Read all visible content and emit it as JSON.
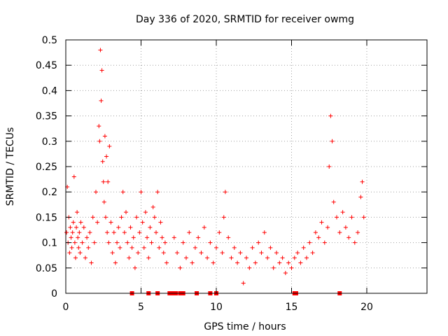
{
  "chart_data": {
    "type": "scatter",
    "title": "Day 336 of 2020, SRMTID for receiver owmg",
    "xlabel": "GPS time / hours",
    "ylabel": "SRMTID / TECUs",
    "xlim": [
      0,
      24
    ],
    "ylim": [
      0,
      0.5
    ],
    "xticks": [
      0,
      5,
      10,
      15,
      20
    ],
    "yticks": [
      0,
      0.05,
      0.1,
      0.15,
      0.2,
      0.25,
      0.3,
      0.35,
      0.4,
      0.45,
      0.5
    ],
    "grid": true,
    "marker": "+",
    "series_color": "#ff0000",
    "series": [
      {
        "name": "SRMTID",
        "x": [
          0.05,
          0.1,
          0.15,
          0.2,
          0.25,
          0.3,
          0.35,
          0.4,
          0.45,
          0.5,
          0.55,
          0.6,
          0.65,
          0.7,
          0.75,
          0.8,
          0.85,
          0.9,
          0.95,
          1.0,
          1.1,
          1.2,
          1.3,
          1.4,
          1.5,
          1.6,
          1.7,
          1.8,
          1.9,
          2.0,
          2.1,
          2.2,
          2.25,
          2.3,
          2.35,
          2.4,
          2.45,
          2.5,
          2.55,
          2.6,
          2.65,
          2.7,
          2.75,
          2.8,
          2.85,
          2.9,
          3.0,
          3.1,
          3.2,
          3.3,
          3.4,
          3.5,
          3.6,
          3.7,
          3.8,
          3.9,
          4.0,
          4.1,
          4.2,
          4.3,
          4.4,
          4.5,
          4.6,
          4.7,
          4.8,
          4.9,
          5.0,
          5.1,
          5.2,
          5.3,
          5.4,
          5.5,
          5.6,
          5.7,
          5.8,
          5.9,
          6.0,
          6.1,
          6.2,
          6.3,
          6.4,
          6.5,
          6.6,
          6.7,
          7.2,
          7.4,
          7.6,
          7.8,
          8.0,
          8.2,
          8.4,
          8.6,
          8.8,
          9.0,
          9.2,
          9.4,
          9.6,
          9.8,
          10.0,
          10.2,
          10.4,
          10.5,
          10.6,
          10.8,
          11.0,
          11.2,
          11.4,
          11.6,
          11.8,
          12.0,
          12.2,
          12.4,
          12.6,
          12.8,
          13.0,
          13.2,
          13.4,
          13.6,
          13.8,
          14.0,
          14.2,
          14.4,
          14.6,
          14.8,
          15.0,
          15.2,
          15.4,
          15.6,
          15.8,
          16.0,
          16.2,
          16.4,
          16.6,
          16.8,
          17.0,
          17.2,
          17.4,
          17.5,
          17.6,
          17.7,
          17.8,
          18.0,
          18.2,
          18.4,
          18.6,
          18.8,
          19.0,
          19.2,
          19.4,
          19.6,
          19.7,
          19.8
        ],
        "y": [
          0.12,
          0.21,
          0.1,
          0.15,
          0.08,
          0.13,
          0.11,
          0.09,
          0.12,
          0.14,
          0.23,
          0.1,
          0.07,
          0.13,
          0.16,
          0.11,
          0.09,
          0.12,
          0.08,
          0.14,
          0.1,
          0.13,
          0.07,
          0.11,
          0.09,
          0.12,
          0.06,
          0.15,
          0.1,
          0.2,
          0.14,
          0.33,
          0.3,
          0.48,
          0.38,
          0.44,
          0.26,
          0.22,
          0.18,
          0.31,
          0.15,
          0.27,
          0.12,
          0.22,
          0.1,
          0.29,
          0.14,
          0.08,
          0.12,
          0.06,
          0.1,
          0.13,
          0.09,
          0.15,
          0.2,
          0.12,
          0.16,
          0.1,
          0.07,
          0.13,
          0.09,
          0.11,
          0.05,
          0.15,
          0.08,
          0.12,
          0.2,
          0.14,
          0.09,
          0.16,
          0.11,
          0.07,
          0.13,
          0.1,
          0.17,
          0.15,
          0.12,
          0.2,
          0.09,
          0.14,
          0.11,
          0.08,
          0.1,
          0.06,
          0.11,
          0.08,
          0.05,
          0.1,
          0.07,
          0.12,
          0.06,
          0.09,
          0.11,
          0.08,
          0.13,
          0.07,
          0.1,
          0.06,
          0.09,
          0.12,
          0.08,
          0.15,
          0.2,
          0.11,
          0.07,
          0.09,
          0.06,
          0.08,
          0.02,
          0.07,
          0.05,
          0.09,
          0.06,
          0.1,
          0.08,
          0.12,
          0.07,
          0.09,
          0.05,
          0.08,
          0.06,
          0.07,
          0.04,
          0.06,
          0.05,
          0.07,
          0.08,
          0.06,
          0.09,
          0.07,
          0.1,
          0.08,
          0.12,
          0.11,
          0.14,
          0.1,
          0.13,
          0.25,
          0.35,
          0.3,
          0.18,
          0.15,
          0.12,
          0.16,
          0.13,
          0.11,
          0.15,
          0.1,
          0.12,
          0.19,
          0.22,
          0.15
        ],
        "zero_x": [
          4.4,
          5.5,
          6.1,
          6.9,
          7.1,
          7.3,
          7.6,
          7.8,
          8.7,
          9.6,
          10.0,
          15.2,
          15.3,
          18.2
        ]
      }
    ]
  }
}
